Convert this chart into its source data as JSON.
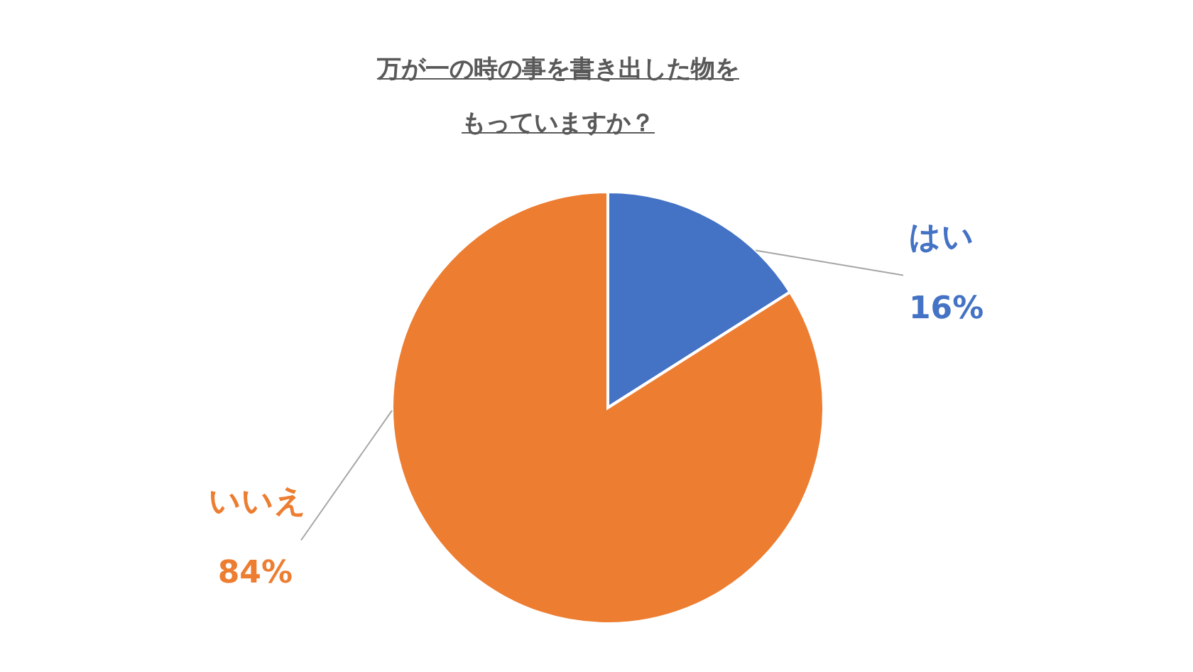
{
  "chart_data": {
    "type": "pie",
    "title": "万が一の時の事を書き出した物をもっていますか？",
    "categories": [
      "はい",
      "いいえ"
    ],
    "values": [
      16,
      84
    ],
    "colors": [
      "#4472c4",
      "#ed7d31"
    ],
    "value_labels": [
      "16%",
      "84%"
    ],
    "legend": false
  }
}
